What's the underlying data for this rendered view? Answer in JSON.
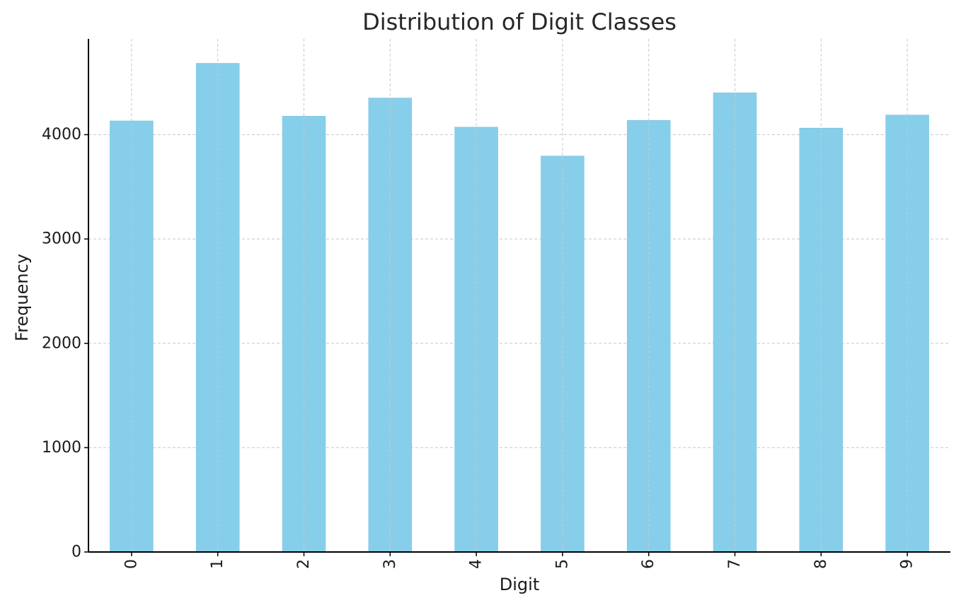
{
  "chart_data": {
    "type": "bar",
    "title": "Distribution of Digit Classes",
    "xlabel": "Digit",
    "ylabel": "Frequency",
    "categories": [
      "0",
      "1",
      "2",
      "3",
      "4",
      "5",
      "6",
      "7",
      "8",
      "9"
    ],
    "values": [
      4132,
      4684,
      4177,
      4351,
      4072,
      3795,
      4137,
      4401,
      4063,
      4188
    ],
    "ylim": [
      0,
      4918
    ],
    "yticks": [
      0,
      1000,
      2000,
      3000,
      4000
    ],
    "x_tick_rotation": "vertical",
    "grid": true,
    "bar_color": "#87CEEB",
    "grid_color": "#c8c8c8",
    "axis_color": "#000000"
  }
}
